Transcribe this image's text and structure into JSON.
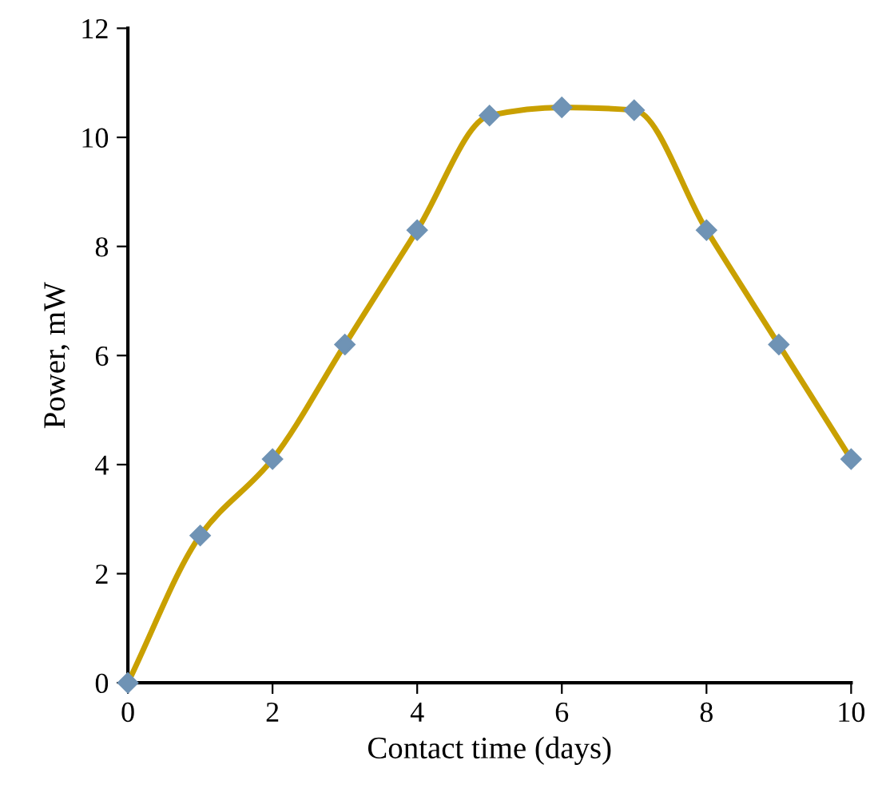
{
  "chart_data": {
    "type": "line",
    "xlabel": "Contact time (days)",
    "ylabel": "Power, mW",
    "x": [
      0,
      1,
      2,
      3,
      4,
      5,
      6,
      7,
      8,
      9,
      10
    ],
    "series": [
      {
        "color": "#c9a000",
        "values": [
          0,
          2.7,
          4.1,
          6.2,
          8.3,
          10.4,
          10.55,
          10.5,
          8.3,
          6.2,
          4.1
        ]
      }
    ],
    "xlim": [
      0,
      10
    ],
    "ylim": [
      0,
      12
    ],
    "xticks": [
      0,
      2,
      4,
      6,
      8,
      10
    ],
    "yticks": [
      0,
      2,
      4,
      6,
      8,
      10,
      12
    ],
    "marker": "diamond",
    "line_style": "solid",
    "grid": false,
    "legend": false
  }
}
